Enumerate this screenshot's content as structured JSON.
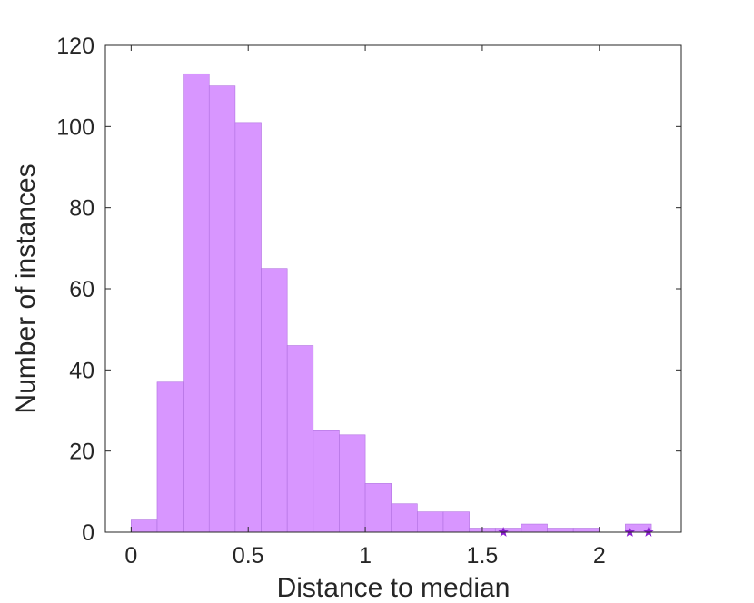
{
  "chart_data": {
    "type": "bar",
    "xlabel": "Distance to median",
    "ylabel": "Number of instances",
    "xlim": [
      -0.11,
      2.35
    ],
    "ylim": [
      0,
      120
    ],
    "xticks": [
      0,
      0.5,
      1,
      1.5,
      2
    ],
    "xtick_labels": [
      "0",
      "0.5",
      "1",
      "1.5",
      "2"
    ],
    "yticks": [
      0,
      20,
      40,
      60,
      80,
      100,
      120
    ],
    "ytick_labels": [
      "0",
      "20",
      "40",
      "60",
      "80",
      "100",
      "120"
    ],
    "bin_width": 0.1111,
    "bins": [
      {
        "start": 0.0,
        "count": 3
      },
      {
        "start": 0.1111,
        "count": 37
      },
      {
        "start": 0.2222,
        "count": 113
      },
      {
        "start": 0.3333,
        "count": 110
      },
      {
        "start": 0.4444,
        "count": 101
      },
      {
        "start": 0.5556,
        "count": 65
      },
      {
        "start": 0.6667,
        "count": 46
      },
      {
        "start": 0.7778,
        "count": 25
      },
      {
        "start": 0.8889,
        "count": 24
      },
      {
        "start": 1.0,
        "count": 12
      },
      {
        "start": 1.1111,
        "count": 7
      },
      {
        "start": 1.2222,
        "count": 5
      },
      {
        "start": 1.3333,
        "count": 5
      },
      {
        "start": 1.4444,
        "count": 1
      },
      {
        "start": 1.5556,
        "count": 1
      },
      {
        "start": 1.6667,
        "count": 2
      },
      {
        "start": 1.7778,
        "count": 1
      },
      {
        "start": 1.8889,
        "count": 1
      },
      {
        "start": 2.0,
        "count": 0
      },
      {
        "start": 2.1111,
        "count": 2
      }
    ],
    "markers": [
      {
        "x": 1.59,
        "y": 0
      },
      {
        "x": 2.13,
        "y": 0
      },
      {
        "x": 2.21,
        "y": 0
      }
    ],
    "grid": false,
    "bar_color": "#d896ff",
    "bar_edge_color": "#b070e0",
    "marker_color": "#8a1fd0"
  }
}
